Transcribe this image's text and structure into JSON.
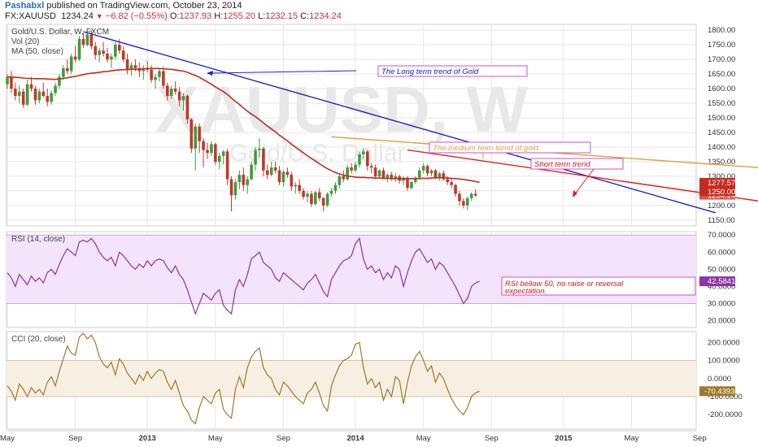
{
  "header": {
    "user": "Pashabxl",
    "published": " published on TradingView.com, October 23, 2014",
    "symbol": "FX:XAUUSD",
    "last": "1234.24",
    "change": "−6.82 (−0.55%)",
    "ohlc": [
      {
        "k": "O:",
        "v": "1237.93"
      },
      {
        "k": "H:",
        "v": "1255.20"
      },
      {
        "k": "L:",
        "v": "1232.15"
      },
      {
        "k": "C:",
        "v": "1234.24"
      }
    ]
  },
  "colors": {
    "up": "#3f9b3f",
    "down": "#c0392b",
    "ma": "#c42b20",
    "long_trend": "#2222cc",
    "medium_trend": "#e0a040",
    "short_trend": "#e02020",
    "rsi": "#8b35a8",
    "cci": "#a0792a",
    "grid": "#e6e6e6"
  },
  "chart_data": [
    {
      "type": "candlestick",
      "legend": [
        "Gold/U.S. Dollar, W, FXCM",
        "Vol (20)",
        "MA (50, close)"
      ],
      "watermark": [
        "XAUUSD, W",
        "Gold/U.S. Dollar"
      ],
      "ylim": [
        1130,
        1820
      ],
      "yticks": [
        "1150.00",
        "1200.00",
        "1250.00",
        "1300.00",
        "1350.00",
        "1400.00",
        "1450.00",
        "1500.00",
        "1550.00",
        "1600.00",
        "1650.00",
        "1700.00",
        "1750.00",
        "1800.00"
      ],
      "price_labels": [
        {
          "value": 1277.57,
          "text": "1277.57",
          "color": "#c42b20"
        },
        {
          "value": 1234.24,
          "text": "1234.24",
          "color": "#d9534f"
        },
        {
          "value": 1250,
          "text": "1250.00",
          "color": "#c42b20"
        }
      ],
      "candles": [
        [
          1615,
          1650,
          1600,
          1640
        ],
        [
          1640,
          1660,
          1585,
          1600
        ],
        [
          1600,
          1620,
          1560,
          1575
        ],
        [
          1575,
          1610,
          1550,
          1590
        ],
        [
          1590,
          1600,
          1535,
          1545
        ],
        [
          1545,
          1630,
          1540,
          1615
        ],
        [
          1615,
          1640,
          1590,
          1600
        ],
        [
          1600,
          1610,
          1545,
          1560
        ],
        [
          1560,
          1600,
          1550,
          1590
        ],
        [
          1590,
          1620,
          1570,
          1575
        ],
        [
          1575,
          1600,
          1540,
          1555
        ],
        [
          1555,
          1595,
          1545,
          1585
        ],
        [
          1585,
          1620,
          1575,
          1610
        ],
        [
          1610,
          1650,
          1600,
          1640
        ],
        [
          1640,
          1680,
          1630,
          1670
        ],
        [
          1670,
          1700,
          1650,
          1660
        ],
        [
          1660,
          1720,
          1650,
          1710
        ],
        [
          1710,
          1745,
          1690,
          1700
        ],
        [
          1700,
          1780,
          1695,
          1770
        ],
        [
          1770,
          1790,
          1740,
          1750
        ],
        [
          1750,
          1795,
          1745,
          1785
        ],
        [
          1785,
          1800,
          1735,
          1745
        ],
        [
          1745,
          1760,
          1700,
          1715
        ],
        [
          1715,
          1740,
          1690,
          1730
        ],
        [
          1730,
          1760,
          1710,
          1720
        ],
        [
          1720,
          1740,
          1690,
          1700
        ],
        [
          1700,
          1720,
          1670,
          1710
        ],
        [
          1710,
          1760,
          1700,
          1750
        ],
        [
          1750,
          1770,
          1720,
          1730
        ],
        [
          1730,
          1745,
          1690,
          1700
        ],
        [
          1700,
          1720,
          1650,
          1665
        ],
        [
          1665,
          1690,
          1645,
          1680
        ],
        [
          1680,
          1700,
          1660,
          1670
        ],
        [
          1670,
          1690,
          1640,
          1660
        ],
        [
          1660,
          1680,
          1630,
          1670
        ],
        [
          1670,
          1695,
          1655,
          1665
        ],
        [
          1665,
          1680,
          1620,
          1630
        ],
        [
          1630,
          1650,
          1600,
          1640
        ],
        [
          1640,
          1670,
          1625,
          1660
        ],
        [
          1660,
          1675,
          1600,
          1610
        ],
        [
          1610,
          1620,
          1560,
          1575
        ],
        [
          1575,
          1610,
          1565,
          1600
        ],
        [
          1600,
          1625,
          1580,
          1590
        ],
        [
          1590,
          1605,
          1540,
          1560
        ],
        [
          1560,
          1585,
          1525,
          1575
        ],
        [
          1575,
          1580,
          1480,
          1495
        ],
        [
          1495,
          1500,
          1380,
          1395
        ],
        [
          1395,
          1480,
          1320,
          1470
        ],
        [
          1470,
          1480,
          1380,
          1420
        ],
        [
          1420,
          1430,
          1330,
          1390
        ],
        [
          1390,
          1415,
          1360,
          1380
        ],
        [
          1380,
          1420,
          1370,
          1410
        ],
        [
          1410,
          1415,
          1340,
          1350
        ],
        [
          1350,
          1380,
          1325,
          1370
        ],
        [
          1370,
          1390,
          1340,
          1385
        ],
        [
          1385,
          1395,
          1270,
          1290
        ],
        [
          1290,
          1300,
          1180,
          1235
        ],
        [
          1235,
          1290,
          1220,
          1280
        ],
        [
          1280,
          1320,
          1255,
          1305
        ],
        [
          1305,
          1330,
          1250,
          1270
        ],
        [
          1270,
          1300,
          1240,
          1290
        ],
        [
          1290,
          1350,
          1285,
          1340
        ],
        [
          1340,
          1400,
          1320,
          1390
        ],
        [
          1390,
          1430,
          1365,
          1395
        ],
        [
          1395,
          1400,
          1300,
          1320
        ],
        [
          1320,
          1340,
          1290,
          1305
        ],
        [
          1305,
          1350,
          1300,
          1330
        ],
        [
          1330,
          1350,
          1310,
          1320
        ],
        [
          1320,
          1335,
          1270,
          1280
        ],
        [
          1280,
          1320,
          1265,
          1315
        ],
        [
          1315,
          1330,
          1295,
          1305
        ],
        [
          1305,
          1315,
          1250,
          1265
        ],
        [
          1265,
          1280,
          1240,
          1270
        ],
        [
          1270,
          1290,
          1240,
          1250
        ],
        [
          1250,
          1260,
          1220,
          1230
        ],
        [
          1230,
          1250,
          1210,
          1240
        ],
        [
          1240,
          1250,
          1195,
          1205
        ],
        [
          1205,
          1250,
          1200,
          1245
        ],
        [
          1245,
          1260,
          1215,
          1225
        ],
        [
          1225,
          1230,
          1180,
          1200
        ],
        [
          1200,
          1245,
          1195,
          1240
        ],
        [
          1240,
          1260,
          1230,
          1250
        ],
        [
          1250,
          1280,
          1240,
          1270
        ],
        [
          1270,
          1310,
          1260,
          1300
        ],
        [
          1300,
          1320,
          1280,
          1290
        ],
        [
          1290,
          1340,
          1285,
          1330
        ],
        [
          1330,
          1345,
          1310,
          1320
        ],
        [
          1320,
          1350,
          1315,
          1340
        ],
        [
          1340,
          1385,
          1330,
          1375
        ],
        [
          1375,
          1395,
          1360,
          1385
        ],
        [
          1385,
          1390,
          1320,
          1335
        ],
        [
          1335,
          1345,
          1310,
          1330
        ],
        [
          1330,
          1340,
          1290,
          1300
        ],
        [
          1300,
          1325,
          1295,
          1320
        ],
        [
          1320,
          1330,
          1290,
          1295
        ],
        [
          1295,
          1310,
          1280,
          1305
        ],
        [
          1305,
          1315,
          1285,
          1290
        ],
        [
          1290,
          1310,
          1280,
          1300
        ],
        [
          1300,
          1305,
          1275,
          1285
        ],
        [
          1285,
          1300,
          1270,
          1295
        ],
        [
          1295,
          1300,
          1250,
          1260
        ],
        [
          1260,
          1285,
          1255,
          1280
        ],
        [
          1280,
          1300,
          1275,
          1295
        ],
        [
          1295,
          1330,
          1290,
          1320
        ],
        [
          1320,
          1345,
          1310,
          1335
        ],
        [
          1335,
          1340,
          1300,
          1310
        ],
        [
          1310,
          1325,
          1300,
          1320
        ],
        [
          1320,
          1325,
          1290,
          1295
        ],
        [
          1295,
          1315,
          1285,
          1310
        ],
        [
          1310,
          1320,
          1285,
          1290
        ],
        [
          1290,
          1300,
          1270,
          1280
        ],
        [
          1280,
          1290,
          1260,
          1270
        ],
        [
          1270,
          1275,
          1230,
          1240
        ],
        [
          1240,
          1250,
          1200,
          1215
        ],
        [
          1215,
          1225,
          1190,
          1200
        ],
        [
          1200,
          1230,
          1185,
          1225
        ],
        [
          1225,
          1245,
          1215,
          1240
        ],
        [
          1240,
          1255,
          1230,
          1234
        ]
      ],
      "ma": [
        1640,
        1640,
        1639,
        1638,
        1636,
        1635,
        1635,
        1634,
        1634,
        1634,
        1633,
        1632,
        1632,
        1633,
        1635,
        1637,
        1640,
        1642,
        1645,
        1648,
        1651,
        1653,
        1654,
        1656,
        1658,
        1659,
        1661,
        1663,
        1664,
        1665,
        1665,
        1666,
        1666,
        1667,
        1668,
        1669,
        1669,
        1669,
        1669,
        1668,
        1667,
        1666,
        1664,
        1662,
        1660,
        1656,
        1650,
        1645,
        1639,
        1631,
        1623,
        1615,
        1606,
        1598,
        1590,
        1580,
        1568,
        1556,
        1546,
        1534,
        1523,
        1513,
        1504,
        1494,
        1483,
        1472,
        1462,
        1452,
        1441,
        1431,
        1421,
        1410,
        1400,
        1390,
        1380,
        1370,
        1361,
        1352,
        1343,
        1334,
        1326,
        1319,
        1313,
        1308,
        1304,
        1301,
        1299,
        1297,
        1296,
        1296,
        1295,
        1295,
        1294,
        1294,
        1293,
        1293,
        1292,
        1292,
        1292,
        1292,
        1292,
        1292,
        1292,
        1292,
        1293,
        1293,
        1294,
        1295,
        1295,
        1295,
        1294,
        1293,
        1292,
        1291,
        1289,
        1287,
        1285,
        1282,
        1279
      ],
      "trend_lines": [
        {
          "name": "long-term-trend-line",
          "from": [
            19,
            1795
          ],
          "to": [
            177,
            1175
          ],
          "color": "#2222cc"
        },
        {
          "name": "medium-term-trend-line",
          "from": [
            81,
            1435
          ],
          "to": [
            223,
            1295
          ],
          "color": "#e0a040"
        },
        {
          "name": "short-term-trend-line",
          "from": [
            100,
            1390
          ],
          "to": [
            208,
            1175
          ],
          "color": "#e02020"
        }
      ],
      "annotations": [
        {
          "text": "The Long term trend of Gold",
          "color": "#1a1acc"
        },
        {
          "text": "The medium term trend of gold",
          "color": "#e0a040"
        },
        {
          "text": "Short term trend",
          "color": "#cc1a1a"
        }
      ]
    },
    {
      "type": "line",
      "legend": "RSI (14, close)",
      "ylim": [
        16,
        72
      ],
      "yticks": [
        "20.0000",
        "30.0000",
        "40.0000",
        "50.0000",
        "60.0000",
        "70.0000"
      ],
      "band": [
        30,
        70
      ],
      "last_label": "42.5841",
      "annotation": [
        "RSI bellow 50, no raise or reversal",
        "expectation."
      ],
      "values": [
        48,
        45,
        40,
        47,
        44,
        41,
        46,
        43,
        45,
        42,
        48,
        50,
        47,
        53,
        58,
        62,
        60,
        58,
        66,
        67,
        66,
        68,
        65,
        60,
        57,
        55,
        57,
        52,
        60,
        58,
        55,
        52,
        50,
        53,
        51,
        55,
        52,
        55,
        56,
        55,
        51,
        48,
        52,
        47,
        44,
        38,
        31,
        24,
        30,
        36,
        34,
        32,
        36,
        38,
        29,
        26,
        24,
        38,
        44,
        40,
        47,
        56,
        58,
        60,
        54,
        52,
        50,
        45,
        43,
        48,
        46,
        44,
        42,
        40,
        38,
        42,
        44,
        47,
        42,
        37,
        34,
        44,
        48,
        52,
        55,
        56,
        58,
        65,
        68,
        56,
        50,
        52,
        48,
        50,
        44,
        48,
        45,
        52,
        50,
        40,
        48,
        55,
        60,
        62,
        58,
        54,
        56,
        50,
        54,
        52,
        48,
        44,
        40,
        35,
        30,
        33,
        40,
        42,
        43
      ],
      "value_suffix": ""
    },
    {
      "type": "line",
      "legend": "CCI (20, close)",
      "ylim": [
        -280,
        260
      ],
      "yticks": [
        "-200.0000",
        "-100.0000",
        "0.0000",
        "100.0000",
        "200.0000"
      ],
      "band": [
        -100,
        100
      ],
      "last_label": "-70.4393",
      "values": [
        -40,
        -70,
        -120,
        -30,
        -60,
        -100,
        -50,
        -80,
        -60,
        -90,
        -20,
        10,
        -40,
        40,
        110,
        180,
        140,
        130,
        230,
        250,
        220,
        240,
        200,
        120,
        80,
        60,
        90,
        20,
        110,
        80,
        30,
        0,
        -30,
        20,
        -10,
        40,
        0,
        30,
        50,
        40,
        -20,
        -60,
        -10,
        -80,
        -150,
        -180,
        -230,
        -250,
        -160,
        -100,
        -120,
        -140,
        -80,
        -60,
        -170,
        -200,
        -220,
        -60,
        10,
        -50,
        60,
        120,
        150,
        170,
        60,
        20,
        0,
        -60,
        -90,
        -20,
        -40,
        -70,
        -100,
        -120,
        -140,
        -80,
        -60,
        -20,
        -80,
        -150,
        -180,
        -40,
        20,
        70,
        100,
        110,
        130,
        190,
        200,
        60,
        -30,
        0,
        -50,
        -20,
        -120,
        -60,
        -100,
        10,
        -10,
        -140,
        -20,
        70,
        120,
        150,
        100,
        40,
        70,
        -20,
        30,
        0,
        -60,
        -110,
        -150,
        -180,
        -200,
        -160,
        -100,
        -80,
        -70
      ]
    }
  ],
  "x_axis": {
    "labels": [
      "May",
      "Sep",
      "2013",
      "May",
      "Sep",
      "2014",
      "May",
      "Sep",
      "2015",
      "May",
      "Sep"
    ],
    "bold": [
      false,
      false,
      true,
      false,
      false,
      true,
      false,
      false,
      true,
      false,
      false
    ],
    "weeks": [
      0,
      17,
      35,
      52,
      69,
      87,
      104,
      121,
      139,
      156,
      173
    ]
  }
}
